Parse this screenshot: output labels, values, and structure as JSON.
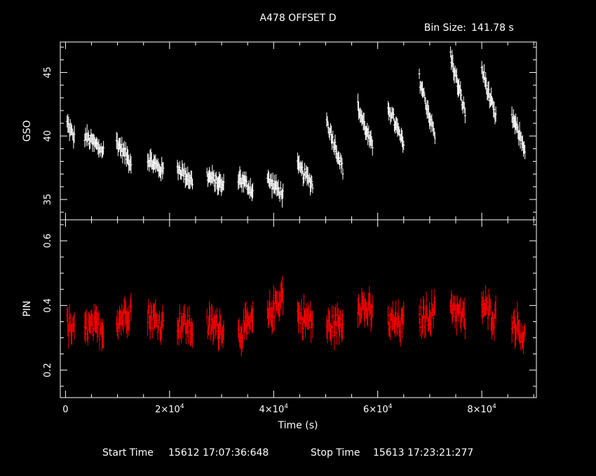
{
  "title": "A478 OFFSET D",
  "bin_label": "Bin Size:",
  "bin_value": "141.78 s",
  "footer": {
    "start_label": "Start Time",
    "start_value": "15612 17:07:36:648",
    "stop_label": "Stop Time",
    "stop_value": "15613 17:23:21:277"
  },
  "colors": {
    "background": "#000000",
    "gso": "#ffffff",
    "pin": "#ff0000",
    "axes": "#ffffff"
  },
  "chart_data": [
    {
      "type": "scatter",
      "ylabel": "GSO",
      "xlim": [
        -1000,
        90500
      ],
      "ylim": [
        33.4,
        47.4
      ],
      "yticks": [
        35,
        40,
        45
      ],
      "x_shared_with": "PIN",
      "color": "#ffffff",
      "segments": [
        {
          "x": [
            300,
            1700
          ],
          "y": [
            41.0,
            39.8
          ]
        },
        {
          "x": [
            3700,
            7300
          ],
          "y": [
            40.0,
            38.8
          ]
        },
        {
          "x": [
            9800,
            12600
          ],
          "y": [
            39.6,
            37.9
          ]
        },
        {
          "x": [
            15800,
            18800
          ],
          "y": [
            38.2,
            37.2
          ]
        },
        {
          "x": [
            21500,
            24400
          ],
          "y": [
            37.6,
            36.4
          ]
        },
        {
          "x": [
            27200,
            30400
          ],
          "y": [
            36.9,
            36.0
          ]
        },
        {
          "x": [
            33200,
            36000
          ],
          "y": [
            36.8,
            35.7
          ]
        },
        {
          "x": [
            38800,
            41800
          ],
          "y": [
            36.6,
            35.4
          ]
        },
        {
          "x": [
            44600,
            47500
          ],
          "y": [
            37.6,
            36.2
          ]
        },
        {
          "x": [
            50200,
            53300
          ],
          "y": [
            41.2,
            37.4
          ]
        },
        {
          "x": [
            56200,
            59000
          ],
          "y": [
            42.3,
            39.0
          ]
        },
        {
          "x": [
            62000,
            65000
          ],
          "y": [
            42.4,
            39.2
          ]
        },
        {
          "x": [
            68000,
            71000
          ],
          "y": [
            44.5,
            40.0
          ]
        },
        {
          "x": [
            74000,
            76800
          ],
          "y": [
            46.3,
            41.8
          ]
        },
        {
          "x": [
            80000,
            82700
          ],
          "y": [
            45.3,
            41.3
          ]
        },
        {
          "x": [
            85800,
            88300
          ],
          "y": [
            41.5,
            39.0
          ]
        }
      ]
    },
    {
      "type": "scatter",
      "ylabel": "PIN",
      "xlabel": "Time (s)",
      "xlim": [
        -1000,
        90500
      ],
      "ylim": [
        0.115,
        0.665
      ],
      "yticks": [
        0.2,
        0.4,
        0.6
      ],
      "xticks": [
        0,
        20000,
        40000,
        60000,
        80000
      ],
      "xticklabels": [
        {
          "mant": "0",
          "exp": ""
        },
        {
          "mant": "2×10",
          "exp": "4"
        },
        {
          "mant": "4×10",
          "exp": "4"
        },
        {
          "mant": "6×10",
          "exp": "4"
        },
        {
          "mant": "8×10",
          "exp": "4"
        }
      ],
      "color": "#ff0000",
      "segments": [
        {
          "x": [
            300,
            1700
          ],
          "y": [
            0.34,
            0.31
          ]
        },
        {
          "x": [
            3700,
            7300
          ],
          "y": [
            0.33,
            0.33
          ]
        },
        {
          "x": [
            9800,
            12600
          ],
          "y": [
            0.35,
            0.39
          ]
        },
        {
          "x": [
            15800,
            18800
          ],
          "y": [
            0.37,
            0.34
          ]
        },
        {
          "x": [
            21500,
            24400
          ],
          "y": [
            0.35,
            0.33
          ]
        },
        {
          "x": [
            27200,
            30400
          ],
          "y": [
            0.34,
            0.33
          ]
        },
        {
          "x": [
            33200,
            36000
          ],
          "y": [
            0.31,
            0.35
          ]
        },
        {
          "x": [
            38800,
            41800
          ],
          "y": [
            0.36,
            0.44
          ]
        },
        {
          "x": [
            44600,
            47500
          ],
          "y": [
            0.37,
            0.35
          ]
        },
        {
          "x": [
            50200,
            53300
          ],
          "y": [
            0.33,
            0.35
          ]
        },
        {
          "x": [
            56200,
            59000
          ],
          "y": [
            0.41,
            0.37
          ]
        },
        {
          "x": [
            62000,
            65000
          ],
          "y": [
            0.35,
            0.34
          ]
        },
        {
          "x": [
            68000,
            71000
          ],
          "y": [
            0.36,
            0.38
          ]
        },
        {
          "x": [
            74000,
            76800
          ],
          "y": [
            0.41,
            0.35
          ]
        },
        {
          "x": [
            80000,
            82700
          ],
          "y": [
            0.4,
            0.36
          ]
        },
        {
          "x": [
            85800,
            88300
          ],
          "y": [
            0.36,
            0.3
          ]
        }
      ]
    }
  ]
}
